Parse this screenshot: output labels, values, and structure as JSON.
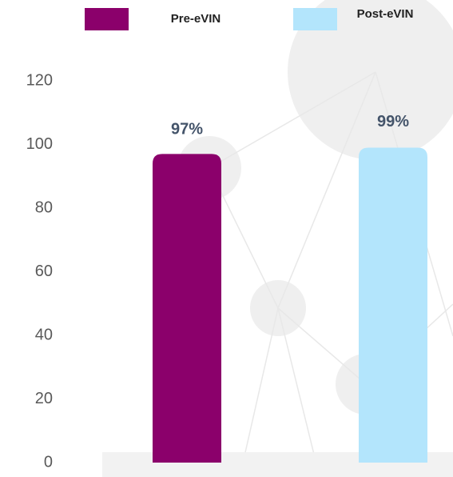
{
  "chart_data": {
    "type": "bar",
    "categories": [
      null
    ],
    "series": [
      {
        "name": "Pre-eVIN",
        "color": "#8b006b",
        "values": [
          97
        ],
        "value_labels": [
          "97%"
        ]
      },
      {
        "name": "Post-eVIN",
        "color": "#b3e5fc",
        "values": [
          99
        ],
        "value_labels": [
          "99%"
        ]
      }
    ],
    "ylim": [
      0,
      120
    ],
    "yticks": [
      0,
      20,
      40,
      60,
      80,
      100,
      120
    ],
    "grid": false,
    "legend": "top"
  }
}
